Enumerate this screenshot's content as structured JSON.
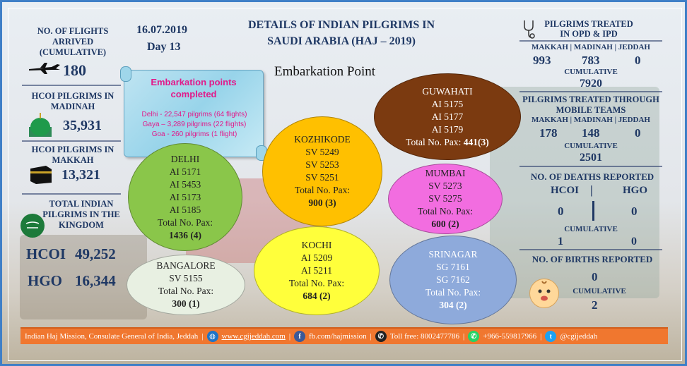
{
  "colors": {
    "navy": "#1f3864",
    "orange": "#f0772f",
    "accent_blue": "#3f7fc7",
    "pink": "#e2198a"
  },
  "flights": {
    "label": "NO. OF FLIGHTS ARRIVED (CUMULATIVE)",
    "value": "180"
  },
  "date": {
    "date": "16.07.2019",
    "day": "Day 13"
  },
  "header": {
    "title_line1": "DETAILS OF INDIAN PILGRIMS IN",
    "title_line2": "SAUDI ARABIA (HAJ – 2019)",
    "subtitle": "Embarkation Point"
  },
  "madinah": {
    "label": "HCOI PILGRIMS IN MADINAH",
    "value": "35,931"
  },
  "makkah": {
    "label": "HCOI PILGRIMS IN MAKKAH",
    "value": "13,321"
  },
  "kingdom": {
    "label": "TOTAL INDIAN PILGRIMS IN THE KINGDOM",
    "hcoi_label": "HCOI",
    "hcoi_value": "49,252",
    "hgo_label": "HGO",
    "hgo_value": "16,344"
  },
  "scroll": {
    "title": "Embarkation points completed",
    "lines": [
      "Delhi - 22,547 pilgrims (64 flights)",
      "Gaya – 3,289 pilgrims (22 flights)",
      "Goa - 260 pilgrims (1 flight)"
    ]
  },
  "circles": {
    "delhi": {
      "name": "DELHI",
      "flights": [
        "AI 5171",
        "AI 5453",
        "AI 5173",
        "AI 5185"
      ],
      "pax_label": "Total No. Pax:",
      "pax": "1436 (4)"
    },
    "bangalore": {
      "name": "BANGALORE",
      "flights": [
        "SV 5155"
      ],
      "pax_label": "Total No. Pax:",
      "pax": "300 (1)"
    },
    "kozhikode": {
      "name": "KOZHIKODE",
      "flights": [
        "SV 5249",
        "SV 5253",
        "SV 5251"
      ],
      "pax_label": "Total No. Pax:",
      "pax": "900 (3)"
    },
    "kochi": {
      "name": "KOCHI",
      "flights": [
        "AI 5209",
        "AI 5211"
      ],
      "pax_label": "Total No. Pax:",
      "pax": "684 (2)"
    },
    "guwahati": {
      "name": "GUWAHATI",
      "flights": [
        "AI 5175",
        "AI 5177",
        "AI 5179"
      ],
      "pax_label": "Total No. Pax:",
      "pax": "441(3)"
    },
    "mumbai": {
      "name": "MUMBAI",
      "flights": [
        "SV 5273",
        "SV 5275"
      ],
      "pax_label": "Total No. Pax:",
      "pax": "600 (2)"
    },
    "srinagar": {
      "name": "SRINAGAR",
      "flights": [
        "SG 7161",
        "SG 7162"
      ],
      "pax_label": "Total No. Pax:",
      "pax": "304 (2)"
    }
  },
  "opd": {
    "title_line1": "PILGRIMS TREATED",
    "title_line2": "IN OPD & IPD",
    "cities": "MAKKAH | MADINAH | JEDDAH",
    "makkah": "993",
    "madinah": "783",
    "jeddah": "0",
    "cumulative_label": "CUMULATIVE",
    "cumulative": "7920"
  },
  "mobile": {
    "title_line1": "PILGRIMS TREATED THROUGH",
    "title_line2": "MOBILE TEAMS",
    "cities": "MAKKAH | MADINAH | JEDDAH",
    "makkah": "178",
    "madinah": "148",
    "jeddah": "0",
    "cumulative_label": "CUMULATIVE",
    "cumulative": "2501"
  },
  "deaths": {
    "title": "NO. OF DEATHS REPORTED",
    "hcoi_label": "HCOI",
    "sep": "|",
    "hgo_label": "HGO",
    "hcoi": "0",
    "hgo": "0",
    "cumulative_label": "CUMULATIVE",
    "cum_hcoi": "1",
    "cum_hgo": "0"
  },
  "births": {
    "title": "NO. OF BIRTHS REPORTED",
    "value": "0",
    "cumulative_label": "CUMULATIVE",
    "cumulative": "2"
  },
  "footer": {
    "org": "Indian Haj Mission, Consulate General of India, Jeddah",
    "website": "www.cgijeddah.com",
    "facebook": "fb.com/hajmission",
    "tollfree": "Toll free: 8002477786",
    "whatsapp": "+966-559817966",
    "twitter": "@cgijeddah",
    "sep": "|"
  }
}
